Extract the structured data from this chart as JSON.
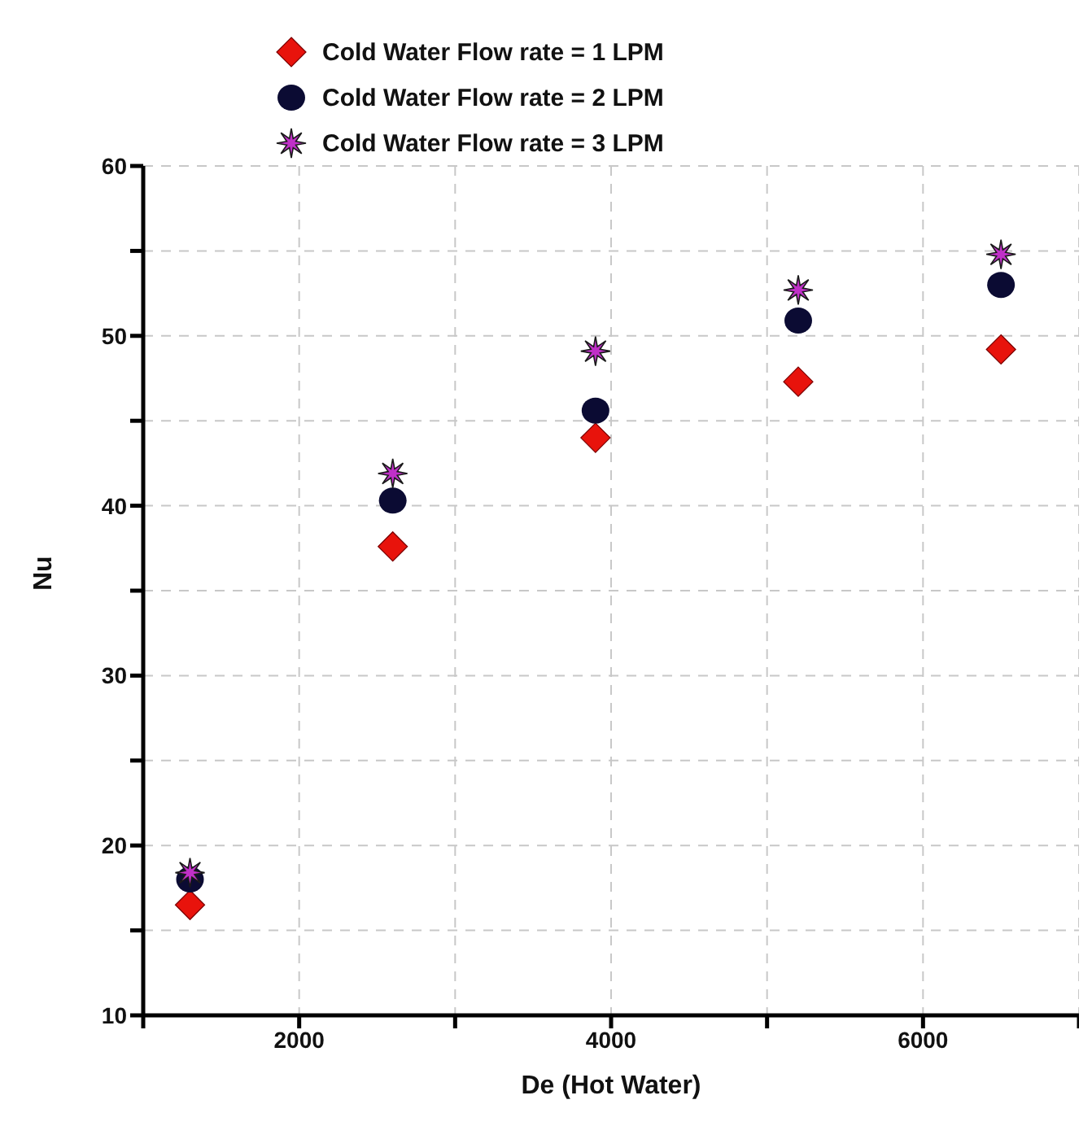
{
  "chart_data": {
    "type": "scatter",
    "xlabel": "De (Hot Water)",
    "ylabel": "Nu",
    "x": [
      1300,
      2600,
      3900,
      5200,
      6500
    ],
    "series": [
      {
        "name": "Cold Water Flow rate = 1 LPM",
        "color": "#e8130c",
        "marker": "diamond",
        "values": [
          16.5,
          37.6,
          44.0,
          47.3,
          49.2
        ]
      },
      {
        "name": "Cold Water Flow rate = 2 LPM",
        "color": "#0b0b33",
        "marker": "circle",
        "values": [
          18.0,
          40.3,
          45.6,
          50.9,
          53.0
        ]
      },
      {
        "name": "Cold Water Flow rate = 3 LPM",
        "color": "#c030c8",
        "marker": "star",
        "values": [
          18.4,
          41.9,
          49.1,
          52.7,
          54.8
        ]
      }
    ],
    "xlim": [
      1000,
      7000
    ],
    "xticks": [
      {
        "value": 1000,
        "label": null
      },
      2000,
      {
        "value": 3000,
        "label": null
      },
      4000,
      {
        "value": 5000,
        "label": null
      },
      6000,
      {
        "value": 7000,
        "label": null
      }
    ],
    "ylim": [
      10,
      60
    ],
    "yticks": [
      10,
      {
        "value": 15,
        "label": null
      },
      20,
      {
        "value": 25,
        "label": null
      },
      30,
      {
        "value": 35,
        "label": null
      },
      40,
      {
        "value": 45,
        "label": null
      },
      50,
      {
        "value": 55,
        "label": null
      },
      60
    ],
    "grid": true,
    "legend": "top"
  }
}
